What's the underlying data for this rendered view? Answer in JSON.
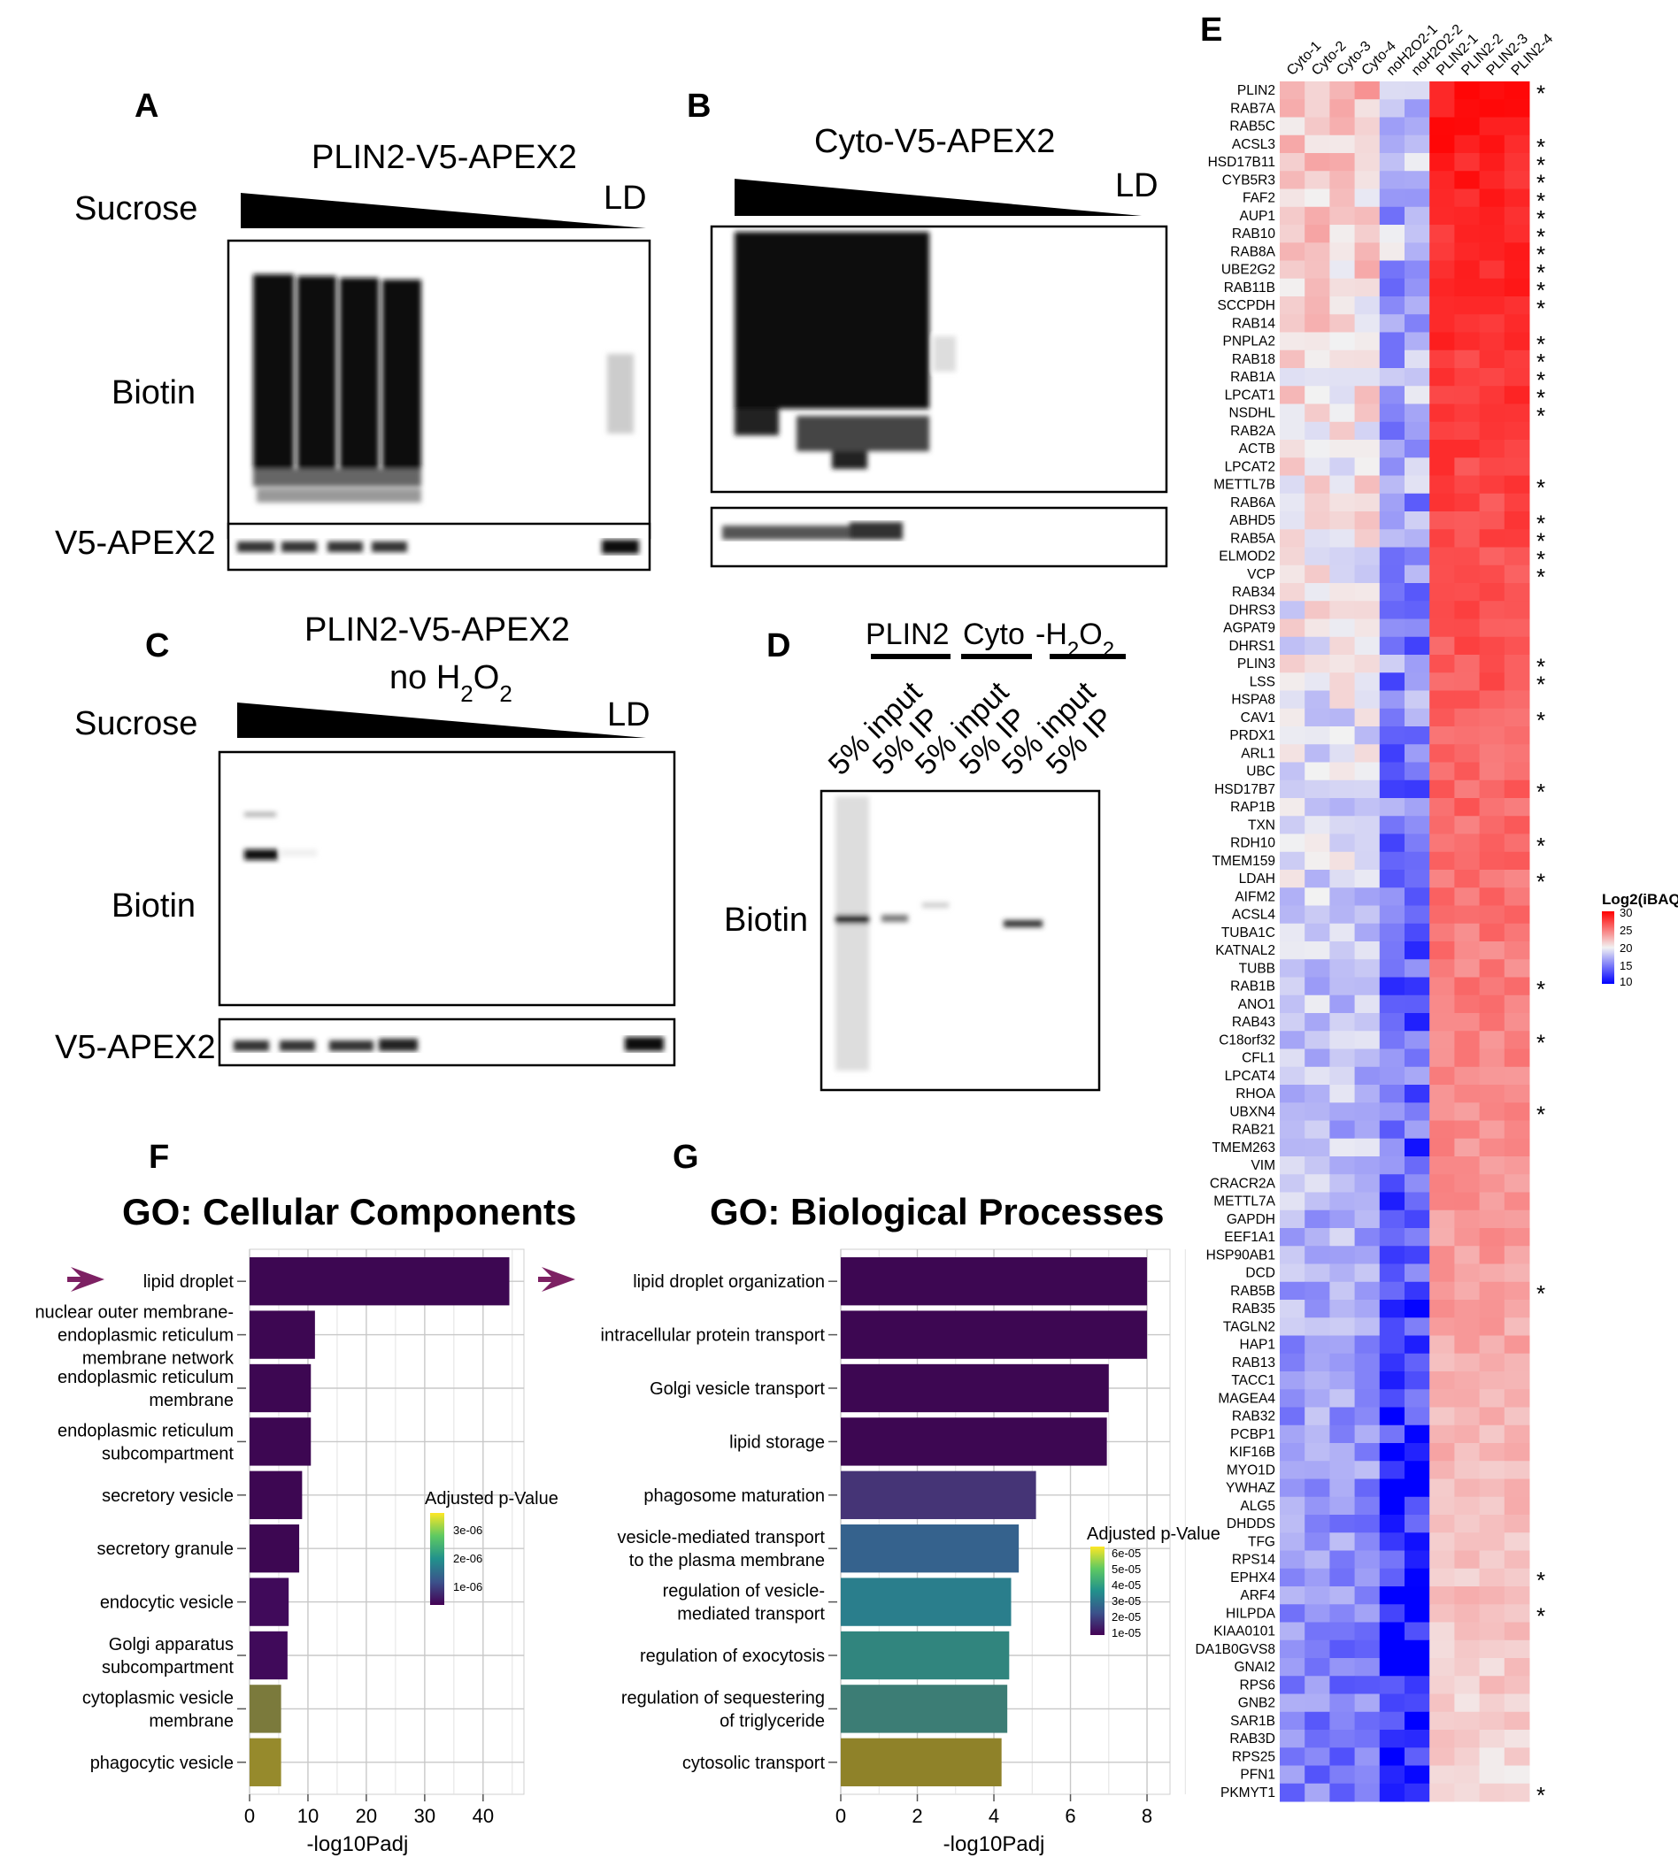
{
  "panels": {
    "A": {
      "letter": "A",
      "title": "PLIN2-V5-APEX2",
      "sucrose_label": "Sucrose",
      "ld_label": "LD",
      "biotin_label": "Biotin",
      "v5_label": "V5-APEX2"
    },
    "B": {
      "letter": "B",
      "title": "Cyto-V5-APEX2",
      "ld_label": "LD"
    },
    "C": {
      "letter": "C",
      "title_line1": "PLIN2-V5-APEX2",
      "title_line2_prefix": "no H",
      "title_sub1": "2",
      "title_mid": "O",
      "title_sub2": "2",
      "sucrose_label": "Sucrose",
      "ld_label": "LD",
      "biotin_label": "Biotin",
      "v5_label": "V5-APEX2"
    },
    "D": {
      "letter": "D",
      "group1": "PLIN2",
      "group2": "Cyto",
      "group3_prefix": "-H",
      "group3_sub1": "2",
      "group3_mid": "O",
      "group3_sub2": "2",
      "lane_labels": [
        "5% input",
        "5% IP",
        "5% input",
        "5% IP",
        "5% input",
        "5% IP"
      ],
      "biotin_label": "Biotin"
    },
    "E": {
      "letter": "E",
      "legend_title": "Log2(iBAQ)",
      "legend_ticks": [
        "30",
        "25",
        "20",
        "15",
        "10"
      ]
    },
    "F": {
      "letter": "F",
      "title": "GO: Cellular Components",
      "legend_title": "Adjusted p-Value",
      "legend_ticks": [
        "3e-06",
        "2e-06",
        "1e-06"
      ]
    },
    "G": {
      "letter": "G",
      "title": "GO: Biological Processes",
      "legend_title": "Adjusted p-Value",
      "legend_ticks": [
        "6e-05",
        "5e-05",
        "4e-05",
        "3e-05",
        "2e-05",
        "1e-05"
      ]
    }
  },
  "chart_data": [
    {
      "type": "bar",
      "orientation": "horizontal",
      "title": "GO: Cellular Components",
      "xlabel": "-log10Padj",
      "xlim": [
        0,
        47
      ],
      "xticks": [
        0,
        10,
        20,
        30,
        40
      ],
      "grid": true,
      "legend_placement": "right",
      "categories": [
        [
          "lipid droplet"
        ],
        [
          "nuclear outer membrane-",
          "endoplasmic reticulum",
          "membrane network"
        ],
        [
          "endoplasmic reticulum",
          "membrane"
        ],
        [
          "endoplasmic reticulum",
          "subcompartment"
        ],
        [
          "secretory vesicle"
        ],
        [
          "secretory granule"
        ],
        [
          "endocytic vesicle"
        ],
        [
          "Golgi apparatus",
          "subcompartment"
        ],
        [
          "cytoplasmic vesicle",
          "membrane"
        ],
        [
          "phagocytic vesicle"
        ]
      ],
      "values": [
        44.5,
        11.2,
        10.5,
        10.5,
        9.0,
        8.5,
        6.7,
        6.5,
        5.4,
        5.4
      ],
      "colors": [
        "#3d0752",
        "#3d0752",
        "#3d0752",
        "#3d0752",
        "#3d0752",
        "#3d0752",
        "#400a5a",
        "#400a5a",
        "#7b7a3c",
        "#968a2c"
      ]
    },
    {
      "type": "bar",
      "orientation": "horizontal",
      "title": "GO: Biological Processes",
      "xlabel": "-log10Padj",
      "xlim": [
        0,
        8.6
      ],
      "xticks": [
        0,
        2,
        4,
        6,
        8
      ],
      "grid": true,
      "legend_placement": "right",
      "categories": [
        [
          "lipid droplet organization"
        ],
        [
          "intracellular protein transport"
        ],
        [
          "Golgi vesicle transport"
        ],
        [
          "lipid storage"
        ],
        [
          "phagosome maturation"
        ],
        [
          "vesicle-mediated transport",
          "to the plasma membrane"
        ],
        [
          "regulation of vesicle-",
          "mediated transport"
        ],
        [
          "regulation of exocytosis"
        ],
        [
          "regulation of sequestering",
          "of triglyceride"
        ],
        [
          "cytosolic transport"
        ]
      ],
      "values": [
        8.0,
        8.0,
        7.0,
        6.95,
        5.1,
        4.65,
        4.45,
        4.4,
        4.35,
        4.2
      ],
      "colors": [
        "#3d0752",
        "#3d0752",
        "#3d0752",
        "#3d0752",
        "#453476",
        "#35628d",
        "#2a7e8c",
        "#31857e",
        "#3c7d75",
        "#8f8229"
      ]
    },
    {
      "type": "heatmap",
      "columns": [
        "Cyto-1",
        "Cyto-2",
        "Cyto-3",
        "Cyto-4",
        "noH2O2-1",
        "noH2O2-2",
        "PLIN2-1",
        "PLIN2-2",
        "PLIN2-3",
        "PLIN2-4"
      ],
      "rows": [
        "PLIN2",
        "RAB7A",
        "RAB5C",
        "ACSL3",
        "HSD17B11",
        "CYB5R3",
        "FAF2",
        "AUP1",
        "RAB10",
        "RAB8A",
        "UBE2G2",
        "RAB11B",
        "SCCPDH",
        "RAB14",
        "PNPLA2",
        "RAB18",
        "RAB1A",
        "LPCAT1",
        "NSDHL",
        "RAB2A",
        "ACTB",
        "LPCAT2",
        "METTL7B",
        "RAB6A",
        "ABHD5",
        "RAB5A",
        "ELMOD2",
        "VCP",
        "RAB34",
        "DHRS3",
        "AGPAT9",
        "DHRS1",
        "PLIN3",
        "LSS",
        "HSPA8",
        "CAV1",
        "PRDX1",
        "ARL1",
        "UBC",
        "HSD17B7",
        "RAP1B",
        "TXN",
        "RDH10",
        "TMEM159",
        "LDAH",
        "AIFM2",
        "ACSL4",
        "TUBA1C",
        "KATNAL2",
        "TUBB",
        "RAB1B",
        "ANO1",
        "RAB43",
        "C18orf32",
        "CFL1",
        "LPCAT4",
        "RHOA",
        "UBXN4",
        "RAB21",
        "TMEM263",
        "VIM",
        "CRACR2A",
        "METTL7A",
        "GAPDH",
        "EEF1A1",
        "HSP90AB1",
        "DCD",
        "RAB5B",
        "RAB35",
        "TAGLN2",
        "HAP1",
        "RAB13",
        "TACC1",
        "MAGEA4",
        "RAB32",
        "PCBP1",
        "KIF16B",
        "MYO1D",
        "YWHAZ",
        "ALG5",
        "DHDDS",
        "TFG",
        "RPS14",
        "EPHX4",
        "ARF4",
        "HILPDA",
        "KIAA0101",
        "DA1B0GVS8",
        "GNAI2",
        "RPS6",
        "GNB2",
        "SAR1B",
        "RAB3D",
        "RPS25",
        "PFN1",
        "PKMYT1"
      ],
      "starred": [
        "PLIN2",
        "ACSL3",
        "HSD17B11",
        "CYB5R3",
        "FAF2",
        "AUP1",
        "RAB10",
        "RAB8A",
        "UBE2G2",
        "RAB11B",
        "SCCPDH",
        "PNPLA2",
        "RAB18",
        "RAB1A",
        "LPCAT1",
        "NSDHL",
        "METTL7B",
        "ABHD5",
        "RAB5A",
        "ELMOD2",
        "VCP",
        "PLIN3",
        "LSS",
        "CAV1",
        "HSD17B7",
        "RDH10",
        "LDAH",
        "RAB1B",
        "C18orf32",
        "UBXN4",
        "RAB5B",
        "EPHX4",
        "HILPDA",
        "PKMYT1"
      ],
      "colorbar_range": [
        10,
        30
      ],
      "colorbar_label": "Log2(iBAQ)"
    }
  ]
}
